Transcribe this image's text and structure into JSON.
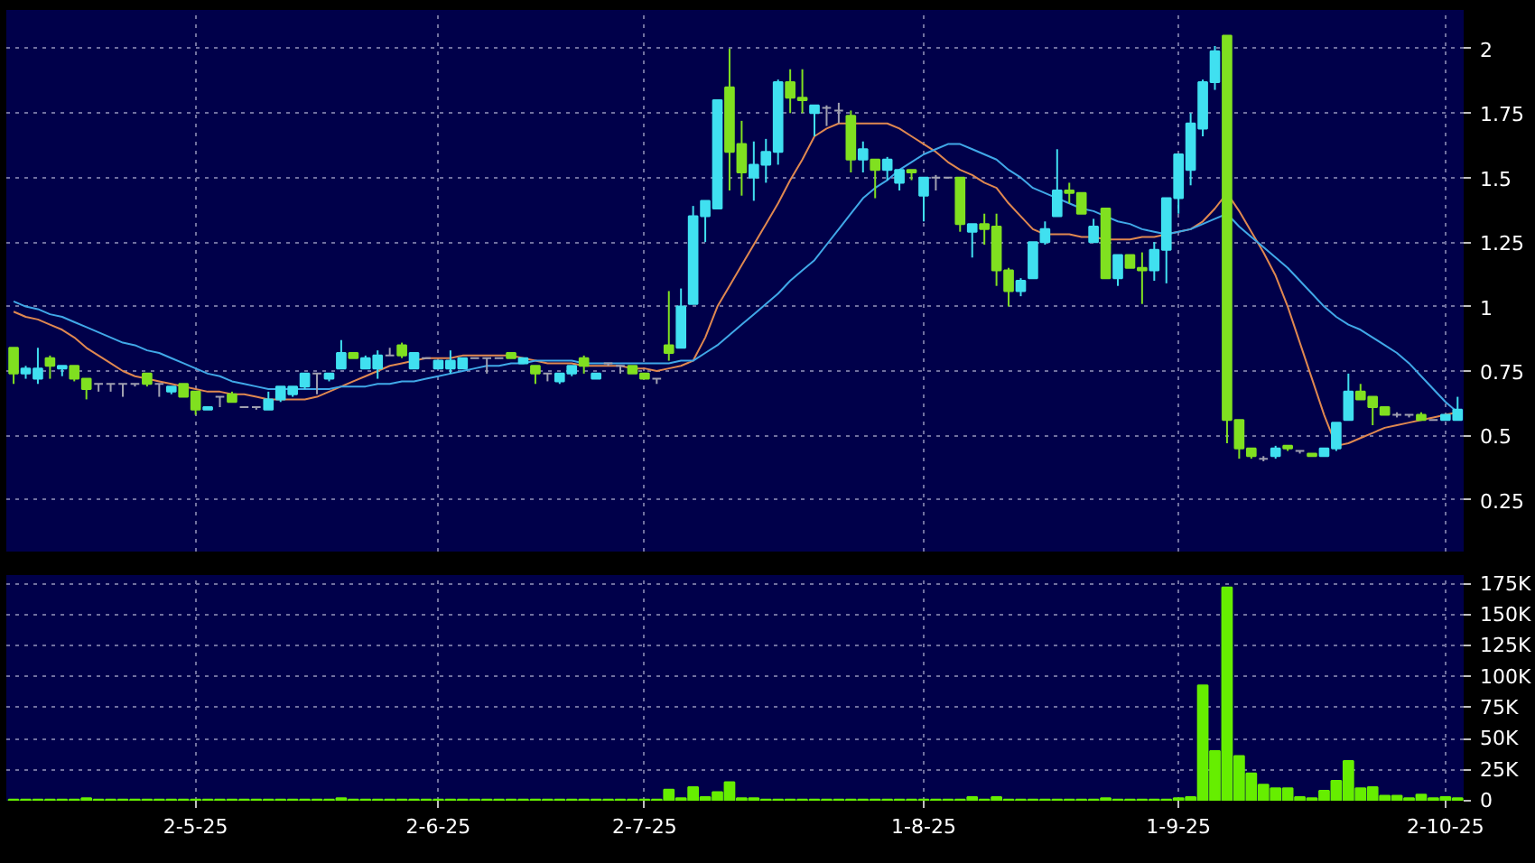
{
  "chart_data": [
    {
      "type": "candlestick",
      "categories": [
        null,
        null,
        null,
        null,
        null,
        null,
        null,
        null,
        null,
        null,
        null,
        null,
        null,
        null,
        null,
        null,
        null,
        null,
        null,
        null,
        null,
        null,
        null,
        null,
        null,
        null,
        null,
        null,
        null,
        null,
        null,
        null,
        null,
        null,
        null,
        null,
        null,
        null,
        null,
        null,
        null,
        null,
        null,
        null,
        null,
        null,
        null,
        null,
        null,
        null,
        null,
        null,
        null,
        null,
        null,
        null,
        null,
        null,
        null,
        null,
        null,
        null,
        null,
        null,
        null,
        null,
        null,
        null,
        null,
        null,
        null,
        null,
        null,
        null,
        null,
        null,
        null,
        null,
        null,
        null,
        null,
        null,
        null,
        null,
        null,
        null,
        null,
        null,
        null,
        null,
        null,
        null,
        null,
        null,
        null,
        null,
        null,
        null,
        null,
        null,
        null,
        null,
        null,
        null,
        null,
        null,
        null,
        null,
        null,
        null,
        null,
        null,
        null,
        null,
        null,
        null,
        null,
        null,
        null,
        null
      ],
      "ohlc": [
        [
          0.84,
          0.84,
          0.7,
          0.74
        ],
        [
          0.74,
          0.77,
          0.72,
          0.76
        ],
        [
          0.72,
          0.84,
          0.7,
          0.76
        ],
        [
          0.8,
          0.81,
          0.72,
          0.77
        ],
        [
          0.76,
          0.77,
          0.73,
          0.77
        ],
        [
          0.77,
          0.77,
          0.71,
          0.72
        ],
        [
          0.72,
          0.72,
          0.64,
          0.68
        ],
        [
          0.7,
          0.7,
          0.67,
          0.7
        ],
        [
          0.7,
          0.7,
          0.67,
          0.7
        ],
        [
          0.7,
          0.7,
          0.65,
          0.7
        ],
        [
          0.7,
          0.7,
          0.69,
          0.7
        ],
        [
          0.74,
          0.74,
          0.69,
          0.7
        ],
        [
          0.7,
          0.7,
          0.65,
          0.7
        ],
        [
          0.67,
          0.69,
          0.66,
          0.69
        ],
        [
          0.7,
          0.7,
          0.65,
          0.65
        ],
        [
          0.67,
          0.67,
          0.58,
          0.6
        ],
        [
          0.6,
          0.61,
          0.6,
          0.61
        ],
        [
          0.65,
          0.65,
          0.61,
          0.65
        ],
        [
          0.66,
          0.67,
          0.63,
          0.63
        ],
        [
          0.61,
          0.61,
          0.61,
          0.61
        ],
        [
          0.61,
          0.61,
          0.6,
          0.61
        ],
        [
          0.6,
          0.67,
          0.6,
          0.64
        ],
        [
          0.64,
          0.69,
          0.63,
          0.69
        ],
        [
          0.66,
          0.69,
          0.65,
          0.69
        ],
        [
          0.69,
          0.74,
          0.68,
          0.74
        ],
        [
          0.74,
          0.74,
          0.66,
          0.74
        ],
        [
          0.72,
          0.74,
          0.71,
          0.74
        ],
        [
          0.76,
          0.87,
          0.76,
          0.82
        ],
        [
          0.82,
          0.82,
          0.8,
          0.8
        ],
        [
          0.76,
          0.81,
          0.76,
          0.8
        ],
        [
          0.76,
          0.83,
          0.72,
          0.81
        ],
        [
          0.81,
          0.84,
          0.81,
          0.81
        ],
        [
          0.85,
          0.86,
          0.8,
          0.81
        ],
        [
          0.76,
          0.82,
          0.76,
          0.82
        ],
        [
          0.8,
          0.8,
          0.8,
          0.8
        ],
        [
          0.76,
          0.79,
          0.76,
          0.79
        ],
        [
          0.76,
          0.83,
          0.74,
          0.79
        ],
        [
          0.76,
          0.8,
          0.76,
          0.8
        ],
        [
          0.8,
          0.8,
          0.8,
          0.8
        ],
        [
          0.8,
          0.8,
          0.74,
          0.8
        ],
        [
          0.8,
          0.8,
          0.8,
          0.8
        ],
        [
          0.82,
          0.82,
          0.8,
          0.8
        ],
        [
          0.78,
          0.8,
          0.78,
          0.8
        ],
        [
          0.77,
          0.77,
          0.7,
          0.74
        ],
        [
          0.74,
          0.74,
          0.71,
          0.74
        ],
        [
          0.71,
          0.74,
          0.7,
          0.74
        ],
        [
          0.74,
          0.77,
          0.73,
          0.77
        ],
        [
          0.8,
          0.81,
          0.74,
          0.77
        ],
        [
          0.72,
          0.74,
          0.72,
          0.74
        ],
        [
          0.78,
          0.78,
          0.77,
          0.78
        ],
        [
          0.77,
          0.77,
          0.74,
          0.77
        ],
        [
          0.77,
          0.77,
          0.74,
          0.74
        ],
        [
          0.74,
          0.74,
          0.72,
          0.72
        ],
        [
          0.72,
          0.72,
          0.7,
          0.72
        ],
        [
          0.85,
          1.06,
          0.79,
          0.82
        ],
        [
          0.84,
          1.07,
          0.84,
          1.0
        ],
        [
          1.01,
          1.39,
          1.01,
          1.35
        ],
        [
          1.35,
          1.41,
          1.25,
          1.41
        ],
        [
          1.38,
          1.8,
          1.38,
          1.8
        ],
        [
          1.85,
          2.0,
          1.45,
          1.6
        ],
        [
          1.63,
          1.72,
          1.43,
          1.52
        ],
        [
          1.5,
          1.64,
          1.41,
          1.55
        ],
        [
          1.55,
          1.65,
          1.48,
          1.6
        ],
        [
          1.6,
          1.88,
          1.55,
          1.87
        ],
        [
          1.87,
          1.92,
          1.75,
          1.81
        ],
        [
          1.81,
          1.92,
          1.75,
          1.8
        ],
        [
          1.75,
          1.78,
          1.66,
          1.78
        ],
        [
          1.77,
          1.78,
          1.7,
          1.77
        ],
        [
          1.76,
          1.79,
          1.71,
          1.76
        ],
        [
          1.74,
          1.76,
          1.52,
          1.57
        ],
        [
          1.57,
          1.64,
          1.52,
          1.61
        ],
        [
          1.57,
          1.57,
          1.42,
          1.53
        ],
        [
          1.53,
          1.58,
          1.49,
          1.57
        ],
        [
          1.48,
          1.53,
          1.45,
          1.53
        ],
        [
          1.53,
          1.53,
          1.49,
          1.52
        ],
        [
          1.43,
          1.5,
          1.33,
          1.5
        ],
        [
          1.5,
          1.51,
          1.45,
          1.5
        ],
        [
          1.5,
          1.5,
          1.5,
          1.5
        ],
        [
          1.5,
          1.5,
          1.29,
          1.32
        ],
        [
          1.29,
          1.32,
          1.19,
          1.32
        ],
        [
          1.32,
          1.36,
          1.24,
          1.3
        ],
        [
          1.31,
          1.36,
          1.08,
          1.14
        ],
        [
          1.14,
          1.15,
          1.0,
          1.06
        ],
        [
          1.06,
          1.11,
          1.04,
          1.1
        ],
        [
          1.11,
          1.25,
          1.11,
          1.25
        ],
        [
          1.25,
          1.33,
          1.24,
          1.3
        ],
        [
          1.35,
          1.61,
          1.35,
          1.45
        ],
        [
          1.45,
          1.48,
          1.4,
          1.44
        ],
        [
          1.44,
          1.44,
          1.36,
          1.36
        ],
        [
          1.25,
          1.34,
          1.25,
          1.31
        ],
        [
          1.38,
          1.38,
          1.11,
          1.11
        ],
        [
          1.11,
          1.2,
          1.08,
          1.2
        ],
        [
          1.2,
          1.2,
          1.15,
          1.15
        ],
        [
          1.15,
          1.21,
          1.01,
          1.14
        ],
        [
          1.14,
          1.25,
          1.1,
          1.22
        ],
        [
          1.22,
          1.42,
          1.09,
          1.42
        ],
        [
          1.42,
          1.59,
          1.36,
          1.59
        ],
        [
          1.53,
          1.75,
          1.47,
          1.71
        ],
        [
          1.69,
          1.88,
          1.66,
          1.87
        ],
        [
          1.87,
          2.01,
          1.84,
          1.99
        ],
        [
          2.05,
          2.05,
          0.47,
          0.56
        ],
        [
          0.56,
          0.56,
          0.41,
          0.45
        ],
        [
          0.45,
          0.45,
          0.41,
          0.42
        ],
        [
          0.41,
          0.42,
          0.4,
          0.41
        ],
        [
          0.42,
          0.46,
          0.41,
          0.45
        ],
        [
          0.46,
          0.46,
          0.44,
          0.45
        ],
        [
          0.44,
          0.44,
          0.43,
          0.44
        ],
        [
          0.43,
          0.43,
          0.42,
          0.42
        ],
        [
          0.42,
          0.45,
          0.42,
          0.45
        ],
        [
          0.45,
          0.55,
          0.44,
          0.55
        ],
        [
          0.56,
          0.74,
          0.56,
          0.67
        ],
        [
          0.67,
          0.7,
          0.64,
          0.64
        ],
        [
          0.65,
          0.65,
          0.54,
          0.61
        ],
        [
          0.61,
          0.61,
          0.58,
          0.58
        ],
        [
          0.58,
          0.59,
          0.57,
          0.58
        ],
        [
          0.58,
          0.58,
          0.57,
          0.58
        ],
        [
          0.58,
          0.59,
          0.56,
          0.56
        ],
        [
          0.56,
          0.56,
          0.56,
          0.56
        ],
        [
          0.56,
          0.58,
          0.56,
          0.58
        ],
        [
          0.56,
          0.65,
          0.56,
          0.6
        ]
      ],
      "colors": [
        "#80e020",
        "#40e0f0",
        "#40e0f0",
        "#80e020",
        "#40e0f0",
        "#80e020",
        "#80e020",
        "#a0a0b0",
        "#a0a0b0",
        "#a0a0b0",
        "#a0a0b0",
        "#80e020",
        "#a0a0b0",
        "#40e0f0",
        "#80e020",
        "#80e020",
        "#40e0f0",
        "#a0a0b0",
        "#80e020",
        "#a0a0b0",
        "#a0a0b0",
        "#40e0f0",
        "#40e0f0",
        "#40e0f0",
        "#40e0f0",
        "#a0a0b0",
        "#40e0f0",
        "#40e0f0",
        "#80e020",
        "#40e0f0",
        "#40e0f0",
        "#a0a0b0",
        "#80e020",
        "#40e0f0",
        "#a0a0b0",
        "#40e0f0",
        "#40e0f0",
        "#40e0f0",
        "#a0a0b0",
        "#a0a0b0",
        "#a0a0b0",
        "#80e020",
        "#40e0f0",
        "#80e020",
        "#a0a0b0",
        "#40e0f0",
        "#40e0f0",
        "#80e020",
        "#40e0f0",
        "#a0a0b0",
        "#a0a0b0",
        "#80e020",
        "#80e020",
        "#a0a0b0",
        "#80e020",
        "#40e0f0",
        "#40e0f0",
        "#40e0f0",
        "#40e0f0",
        "#80e020",
        "#80e020",
        "#40e0f0",
        "#40e0f0",
        "#40e0f0",
        "#80e020",
        "#80e020",
        "#40e0f0",
        "#a0a0b0",
        "#a0a0b0",
        "#80e020",
        "#40e0f0",
        "#80e020",
        "#40e0f0",
        "#40e0f0",
        "#80e020",
        "#40e0f0",
        "#a0a0b0",
        "#a0a0b0",
        "#80e020",
        "#40e0f0",
        "#80e020",
        "#80e020",
        "#80e020",
        "#40e0f0",
        "#40e0f0",
        "#40e0f0",
        "#40e0f0",
        "#80e020",
        "#80e020",
        "#40e0f0",
        "#80e020",
        "#40e0f0",
        "#80e020",
        "#80e020",
        "#40e0f0",
        "#40e0f0",
        "#40e0f0",
        "#40e0f0",
        "#40e0f0",
        "#40e0f0",
        "#80e020",
        "#80e020",
        "#80e020",
        "#a0a0b0",
        "#40e0f0",
        "#80e020",
        "#a0a0b0",
        "#80e020",
        "#40e0f0",
        "#40e0f0",
        "#40e0f0",
        "#80e020",
        "#80e020",
        "#80e020",
        "#a0a0b0",
        "#a0a0b0",
        "#80e020",
        "#a0a0b0",
        "#40e0f0",
        "#40e0f0"
      ],
      "series": [
        {
          "type": "line",
          "color": "#e08850",
          "values": [
            0.98,
            0.96,
            0.95,
            0.93,
            0.91,
            0.88,
            0.84,
            0.81,
            0.78,
            0.75,
            0.73,
            0.72,
            0.71,
            0.7,
            0.69,
            0.68,
            0.67,
            0.67,
            0.66,
            0.66,
            0.65,
            0.64,
            0.64,
            0.64,
            0.64,
            0.65,
            0.67,
            0.69,
            0.71,
            0.73,
            0.75,
            0.77,
            0.78,
            0.79,
            0.8,
            0.8,
            0.8,
            0.81,
            0.81,
            0.81,
            0.81,
            0.81,
            0.8,
            0.79,
            0.78,
            0.78,
            0.78,
            0.77,
            0.77,
            0.77,
            0.77,
            0.76,
            0.76,
            0.75,
            0.76,
            0.77,
            0.79,
            0.88,
            1.0,
            1.08,
            1.16,
            1.24,
            1.32,
            1.4,
            1.49,
            1.57,
            1.66,
            1.69,
            1.71,
            1.71,
            1.71,
            1.71,
            1.71,
            1.69,
            1.66,
            1.63,
            1.6,
            1.56,
            1.53,
            1.51,
            1.48,
            1.46,
            1.4,
            1.35,
            1.3,
            1.28,
            1.28,
            1.28,
            1.27,
            1.27,
            1.26,
            1.26,
            1.26,
            1.27,
            1.27,
            1.28,
            1.29,
            1.3,
            1.33,
            1.38,
            1.44,
            1.37,
            1.29,
            1.21,
            1.12,
            1.0,
            0.86,
            0.72,
            0.58,
            0.46,
            0.47,
            0.49,
            0.51,
            0.53,
            0.54,
            0.55,
            0.56,
            0.57,
            0.58,
            0.59
          ]
        },
        {
          "type": "line",
          "color": "#40a8e8",
          "values": [
            1.02,
            1.0,
            0.99,
            0.97,
            0.96,
            0.94,
            0.92,
            0.9,
            0.88,
            0.86,
            0.85,
            0.83,
            0.82,
            0.8,
            0.78,
            0.76,
            0.74,
            0.73,
            0.71,
            0.7,
            0.69,
            0.68,
            0.68,
            0.68,
            0.68,
            0.68,
            0.68,
            0.69,
            0.69,
            0.69,
            0.7,
            0.7,
            0.71,
            0.71,
            0.72,
            0.73,
            0.74,
            0.75,
            0.76,
            0.77,
            0.77,
            0.78,
            0.78,
            0.79,
            0.79,
            0.79,
            0.79,
            0.78,
            0.78,
            0.78,
            0.78,
            0.78,
            0.78,
            0.78,
            0.78,
            0.79,
            0.79,
            0.82,
            0.85,
            0.89,
            0.93,
            0.97,
            1.01,
            1.05,
            1.1,
            1.14,
            1.18,
            1.24,
            1.3,
            1.36,
            1.42,
            1.46,
            1.49,
            1.53,
            1.56,
            1.59,
            1.61,
            1.63,
            1.63,
            1.61,
            1.59,
            1.57,
            1.53,
            1.5,
            1.46,
            1.44,
            1.42,
            1.4,
            1.38,
            1.37,
            1.35,
            1.33,
            1.32,
            1.3,
            1.29,
            1.28,
            1.29,
            1.3,
            1.32,
            1.34,
            1.36,
            1.31,
            1.27,
            1.23,
            1.19,
            1.15,
            1.1,
            1.05,
            1.0,
            0.96,
            0.93,
            0.91,
            0.88,
            0.85,
            0.82,
            0.78,
            0.73,
            0.68,
            0.63,
            0.59
          ]
        }
      ],
      "ylim": [
        0.05,
        2.15
      ],
      "yticks": [
        0.25,
        0.5,
        0.75,
        1,
        1.25,
        1.5,
        1.75,
        2
      ],
      "grid": true,
      "tick_labels": "y"
    },
    {
      "type": "bar",
      "categories": [
        null,
        null,
        null,
        null,
        null,
        null,
        null,
        null,
        null,
        null,
        null,
        null,
        null,
        null,
        null,
        "2-5-25",
        null,
        null,
        null,
        null,
        null,
        null,
        null,
        null,
        null,
        null,
        null,
        null,
        null,
        null,
        null,
        null,
        null,
        null,
        null,
        "2-6-25",
        null,
        null,
        null,
        null,
        null,
        null,
        null,
        null,
        null,
        null,
        null,
        null,
        null,
        null,
        null,
        null,
        "2-7-25",
        null,
        null,
        null,
        null,
        null,
        null,
        null,
        null,
        null,
        null,
        null,
        null,
        null,
        null,
        null,
        null,
        null,
        null,
        null,
        null,
        null,
        null,
        "1-8-25",
        null,
        null,
        null,
        null,
        null,
        null,
        null,
        null,
        null,
        null,
        null,
        null,
        null,
        null,
        null,
        null,
        null,
        null,
        null,
        null,
        "1-9-25",
        null,
        null,
        null,
        null,
        null,
        null,
        null,
        null,
        null,
        null,
        null,
        null,
        null,
        null,
        null,
        null,
        null,
        null,
        null,
        null,
        null,
        "2-10-25",
        null
      ],
      "values": [
        1000,
        1000,
        1000,
        1000,
        1000,
        1000,
        2000,
        1000,
        1000,
        1000,
        1000,
        1000,
        1000,
        1000,
        1000,
        1000,
        1000,
        1000,
        1000,
        1000,
        1000,
        1000,
        1000,
        1000,
        1000,
        1000,
        1000,
        2000,
        1000,
        1000,
        1000,
        1000,
        1000,
        1000,
        1000,
        1000,
        1000,
        1000,
        1000,
        1000,
        1000,
        1000,
        1000,
        1000,
        1000,
        1000,
        1000,
        1000,
        1000,
        1000,
        1000,
        1000,
        1000,
        1000,
        9000,
        2000,
        11000,
        3000,
        7000,
        15000,
        2000,
        2000,
        1000,
        1000,
        1000,
        1000,
        1000,
        1000,
        1000,
        1000,
        1000,
        1000,
        1000,
        1000,
        1000,
        1000,
        1000,
        1000,
        1000,
        3000,
        1000,
        3000,
        1000,
        1000,
        1000,
        1000,
        1000,
        1000,
        1000,
        1000,
        2000,
        1000,
        1000,
        1000,
        1000,
        1000,
        2000,
        3000,
        93000,
        40000,
        172000,
        36000,
        22000,
        13000,
        10000,
        10000,
        3000,
        2000,
        8000,
        16000,
        32000,
        10000,
        11000,
        4000,
        4000,
        2000,
        5000,
        2000,
        3000,
        2000
      ],
      "color": "#66ee00",
      "ylim": [
        0,
        182000
      ],
      "yticks": [
        {
          "value": 0,
          "label": "0"
        },
        {
          "value": 25000,
          "label": "25K"
        },
        {
          "value": 50000,
          "label": "50K"
        },
        {
          "value": 75000,
          "label": "75K"
        },
        {
          "value": 100000,
          "label": "100K"
        },
        {
          "value": 125000,
          "label": "125K"
        },
        {
          "value": 150000,
          "label": "150K"
        },
        {
          "value": 175000,
          "label": "175K"
        }
      ],
      "grid": true
    }
  ]
}
